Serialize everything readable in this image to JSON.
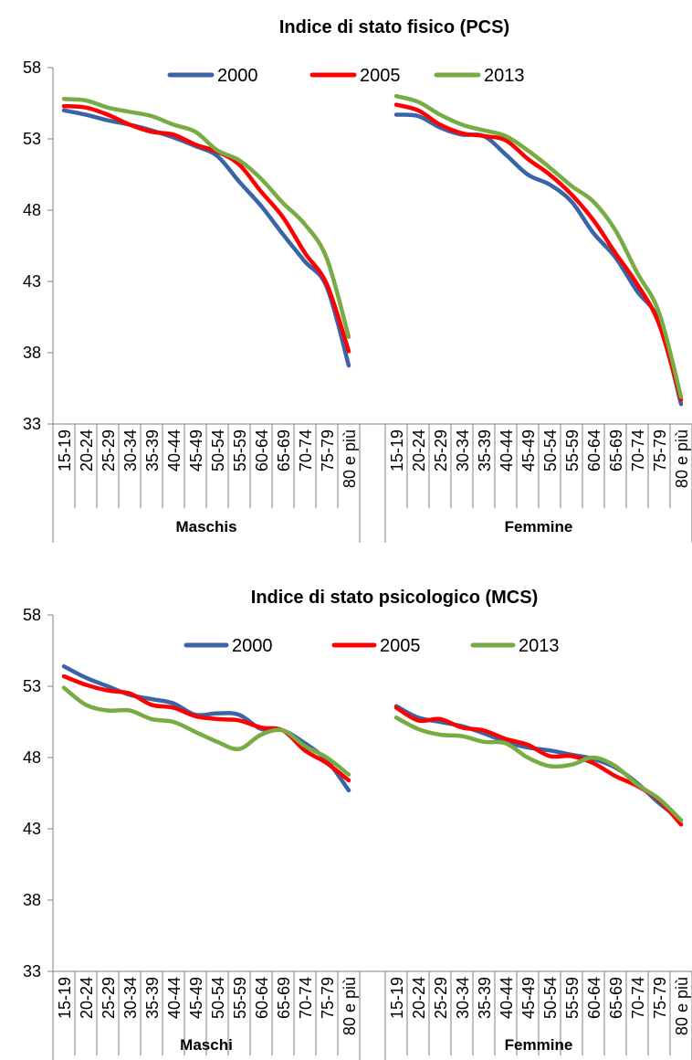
{
  "chart_data": [
    {
      "type": "line",
      "title": "Indice di stato fisico (PCS)",
      "ylim": [
        33,
        58
      ],
      "yticks": [
        33,
        38,
        43,
        48,
        53,
        58
      ],
      "grid": false,
      "legend": "top-center",
      "groups": [
        {
          "label": "Maschis",
          "categories": [
            "15-19",
            "20-24",
            "25-29",
            "30-34",
            "35-39",
            "40-44",
            "45-49",
            "50-54",
            "55-59",
            "60-64",
            "65-69",
            "70-74",
            "75-79",
            "80 e più"
          ]
        },
        {
          "label": "Femmine",
          "categories": [
            "15-19",
            "20-24",
            "25-29",
            "30-34",
            "35-39",
            "40-44",
            "45-49",
            "50-54",
            "55-59",
            "60-64",
            "65-69",
            "70-74",
            "75-79",
            "80 e più"
          ]
        }
      ],
      "series": [
        {
          "name": "2000",
          "color": "#3A64A8",
          "maschi": [
            55.0,
            54.7,
            54.3,
            54.0,
            53.6,
            53.1,
            52.5,
            51.8,
            50.0,
            48.3,
            46.3,
            44.4,
            42.6,
            37.1
          ],
          "femmine": [
            54.7,
            54.6,
            53.8,
            53.3,
            53.2,
            51.9,
            50.5,
            49.8,
            48.6,
            46.4,
            44.7,
            42.3,
            40.2,
            34.4
          ]
        },
        {
          "name": "2005",
          "color": "#FF0000",
          "maschi": [
            55.3,
            55.2,
            54.7,
            54.0,
            53.5,
            53.3,
            52.6,
            52.1,
            51.2,
            49.3,
            47.5,
            45.0,
            42.8,
            38.1
          ],
          "femmine": [
            55.4,
            55.0,
            54.0,
            53.4,
            53.2,
            52.9,
            51.6,
            50.5,
            49.1,
            47.3,
            45.0,
            42.8,
            40.0,
            34.7
          ]
        },
        {
          "name": "2013",
          "color": "#77AB43",
          "maschi": [
            55.8,
            55.7,
            55.2,
            54.9,
            54.6,
            54.0,
            53.5,
            52.2,
            51.5,
            50.2,
            48.5,
            47.0,
            44.6,
            39.1
          ],
          "femmine": [
            56.0,
            55.6,
            54.7,
            54.0,
            53.6,
            53.2,
            52.2,
            51.0,
            49.7,
            48.6,
            46.6,
            43.6,
            40.8,
            34.9
          ]
        }
      ]
    },
    {
      "type": "line",
      "title": "Indice di stato psicologico (MCS)",
      "ylim": [
        33,
        58
      ],
      "yticks": [
        33,
        38,
        43,
        48,
        53,
        58
      ],
      "grid": false,
      "legend": "top-center",
      "groups": [
        {
          "label": "Maschi",
          "categories": [
            "15-19",
            "20-24",
            "25-29",
            "30-34",
            "35-39",
            "40-44",
            "45-49",
            "50-54",
            "55-59",
            "60-64",
            "65-69",
            "70-74",
            "75-79",
            "80 e più"
          ]
        },
        {
          "label": "Femmine",
          "categories": [
            "15-19",
            "20-24",
            "25-29",
            "30-34",
            "35-39",
            "40-44",
            "45-49",
            "50-54",
            "55-59",
            "60-64",
            "65-69",
            "70-74",
            "75-79",
            "80 e più"
          ]
        }
      ],
      "series": [
        {
          "name": "2000",
          "color": "#3A64A8",
          "maschi": [
            54.4,
            53.6,
            53.0,
            52.4,
            52.1,
            51.8,
            51.0,
            51.1,
            51.0,
            50.0,
            49.9,
            49.0,
            47.8,
            45.7
          ],
          "femmine": [
            51.6,
            50.8,
            50.5,
            50.2,
            49.7,
            49.1,
            48.7,
            48.5,
            48.2,
            47.9,
            47.3,
            46.2,
            44.8,
            43.6
          ]
        },
        {
          "name": "2005",
          "color": "#FF0000",
          "maschi": [
            53.7,
            53.1,
            52.7,
            52.5,
            51.7,
            51.5,
            50.9,
            50.7,
            50.6,
            50.1,
            49.9,
            48.5,
            47.6,
            46.4
          ],
          "femmine": [
            51.5,
            50.6,
            50.7,
            50.1,
            49.9,
            49.3,
            48.9,
            48.1,
            48.1,
            47.6,
            46.7,
            46.0,
            45.0,
            43.3
          ]
        },
        {
          "name": "2013",
          "color": "#77AB43",
          "maschi": [
            52.9,
            51.7,
            51.3,
            51.3,
            50.7,
            50.5,
            49.8,
            49.1,
            48.6,
            49.6,
            49.9,
            48.8,
            48.0,
            46.8
          ],
          "femmine": [
            50.8,
            50.0,
            49.6,
            49.5,
            49.1,
            49.0,
            48.0,
            47.4,
            47.5,
            48.0,
            47.4,
            46.1,
            45.1,
            43.6
          ]
        }
      ]
    }
  ]
}
